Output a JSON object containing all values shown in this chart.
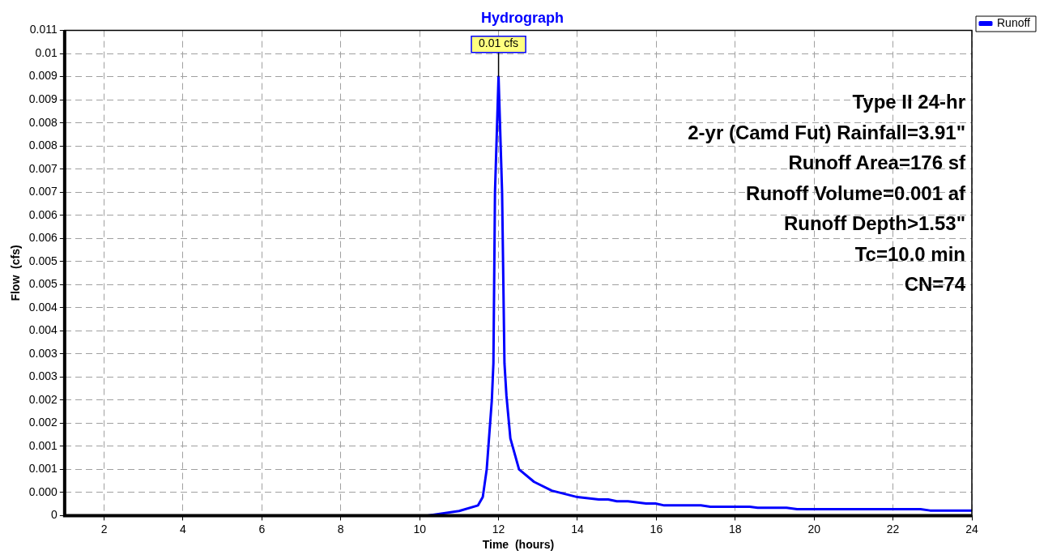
{
  "chart_data": {
    "type": "line",
    "title": "Hydrograph",
    "xlabel": "Time  (hours)",
    "ylabel": "Flow  (cfs)",
    "xlim": [
      1,
      24
    ],
    "xticks": [
      2,
      4,
      6,
      8,
      10,
      12,
      14,
      16,
      18,
      20,
      22,
      24
    ],
    "ylim": [
      0,
      0.0105
    ],
    "yticks": [
      0,
      {
        "value": 0.0005,
        "label": "0.000"
      },
      {
        "value": 0.001,
        "label": "0.001"
      },
      {
        "value": 0.0015,
        "label": "0.001"
      },
      {
        "value": 0.002,
        "label": "0.002"
      },
      {
        "value": 0.0025,
        "label": "0.002"
      },
      {
        "value": 0.003,
        "label": "0.003"
      },
      {
        "value": 0.0035,
        "label": "0.003"
      },
      {
        "value": 0.004,
        "label": "0.004"
      },
      {
        "value": 0.0045,
        "label": "0.004"
      },
      {
        "value": 0.005,
        "label": "0.005"
      },
      {
        "value": 0.0055,
        "label": "0.005"
      },
      {
        "value": 0.006,
        "label": "0.006"
      },
      {
        "value": 0.0065,
        "label": "0.006"
      },
      {
        "value": 0.007,
        "label": "0.007"
      },
      {
        "value": 0.0075,
        "label": "0.007"
      },
      {
        "value": 0.008,
        "label": "0.008"
      },
      {
        "value": 0.0085,
        "label": "0.008"
      },
      {
        "value": 0.009,
        "label": "0.009"
      },
      {
        "value": 0.0095,
        "label": "0.009"
      },
      {
        "value": 0.01,
        "label": "0.01"
      },
      {
        "value": 0.0105,
        "label": "0.011"
      }
    ],
    "grid": true,
    "legend": "top right",
    "marker": "none",
    "line_style": "solid",
    "series": [
      {
        "name": "Runoff",
        "color": "#0000ff",
        "x": [
          1,
          10.2,
          11.0,
          11.48,
          11.6,
          11.7,
          11.83,
          11.87,
          11.91,
          12.0,
          12.09,
          12.15,
          12.2,
          12.3,
          12.52,
          12.9,
          13.35,
          14.0,
          14.54,
          14.78,
          15.0,
          15.28,
          15.74,
          15.98,
          16.2,
          17.13,
          17.37,
          18.37,
          18.57,
          19.3,
          19.57,
          22.7,
          22.94,
          24
        ],
        "values": [
          0,
          0,
          0.0001,
          0.00022,
          0.0004,
          0.001,
          0.0025,
          0.0033,
          0.007,
          0.0095,
          0.007,
          0.0033,
          0.0026,
          0.00167,
          0.001,
          0.00073,
          0.00054,
          0.0004,
          0.00035,
          0.00035,
          0.00031,
          0.00031,
          0.00026,
          0.00026,
          0.00022,
          0.00022,
          0.00019,
          0.00019,
          0.00017,
          0.00017,
          0.00014,
          0.00014,
          0.00011,
          0.00011
        ]
      }
    ],
    "annotations": [
      {
        "text": "0.01 cfs",
        "x": 12.0,
        "y": 0.0095
      },
      "Type II 24-hr",
      "2-yr (Camd Fut) Rainfall=3.91\"",
      "Runoff Area=176 sf",
      "Runoff Volume=0.001 af",
      "Runoff Depth>1.53\"",
      "Tc=10.0 min",
      "CN=74"
    ]
  }
}
